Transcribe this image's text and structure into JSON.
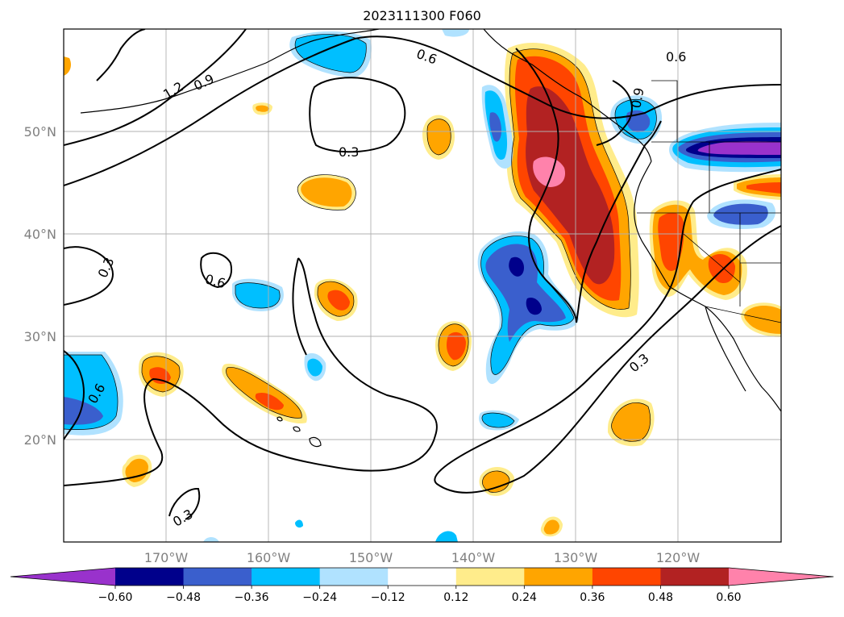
{
  "title": "2023111300 F060",
  "map": {
    "lat_labels": [
      "50°N",
      "40°N",
      "30°N",
      "20°N"
    ],
    "lon_labels": [
      "170°W",
      "160°W",
      "150°W",
      "140°W",
      "130°W",
      "120°W"
    ],
    "contour_labels": [
      "1.2",
      "0.9",
      "0.6",
      "0.6",
      "0.3",
      "0.3",
      "0.6",
      "0.6",
      "0.9",
      "0.3",
      "0.3"
    ]
  },
  "colorbar": {
    "ticks": [
      "−0.60",
      "−0.48",
      "−0.36",
      "−0.24",
      "−0.12",
      "0.12",
      "0.24",
      "0.36",
      "0.48",
      "0.60"
    ],
    "colors": [
      "#9932cc",
      "#00008b",
      "#3a5fcd",
      "#00bfff",
      "#b0e2ff",
      "#ffffff",
      "#ffec8b",
      "#ffa500",
      "#ff4500",
      "#b22222",
      "#ff82ab"
    ]
  }
}
